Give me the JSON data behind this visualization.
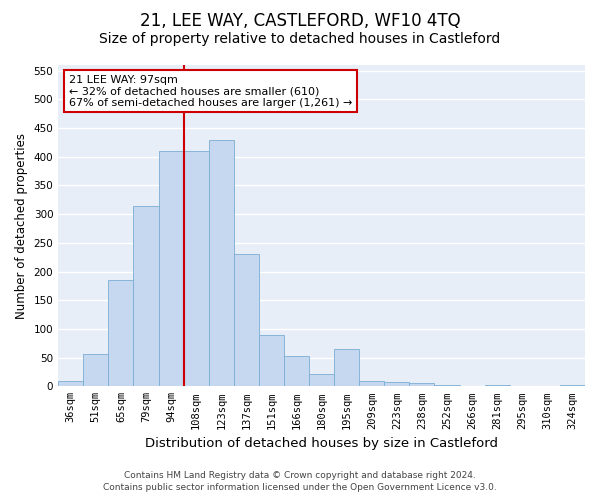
{
  "title": "21, LEE WAY, CASTLEFORD, WF10 4TQ",
  "subtitle": "Size of property relative to detached houses in Castleford",
  "xlabel": "Distribution of detached houses by size in Castleford",
  "ylabel": "Number of detached properties",
  "categories": [
    "36sqm",
    "51sqm",
    "65sqm",
    "79sqm",
    "94sqm",
    "108sqm",
    "123sqm",
    "137sqm",
    "151sqm",
    "166sqm",
    "180sqm",
    "195sqm",
    "209sqm",
    "223sqm",
    "238sqm",
    "252sqm",
    "266sqm",
    "281sqm",
    "295sqm",
    "310sqm",
    "324sqm"
  ],
  "values": [
    10,
    57,
    185,
    315,
    410,
    410,
    430,
    230,
    90,
    52,
    22,
    65,
    10,
    8,
    5,
    3,
    1,
    2,
    1,
    1,
    3
  ],
  "bar_color": "#c5d8f0",
  "bar_edge_color": "#7aadd4",
  "vline_color": "#cc0000",
  "vline_x_index": 4.5,
  "ylim": [
    0,
    560
  ],
  "yticks": [
    0,
    50,
    100,
    150,
    200,
    250,
    300,
    350,
    400,
    450,
    500,
    550
  ],
  "annotation_line1": "21 LEE WAY: 97sqm",
  "annotation_line2": "← 32% of detached houses are smaller (610)",
  "annotation_line3": "67% of semi-detached houses are larger (1,261) →",
  "annotation_box_facecolor": "#ffffff",
  "annotation_box_edgecolor": "#cc0000",
  "footer_line1": "Contains HM Land Registry data © Crown copyright and database right 2024.",
  "footer_line2": "Contains public sector information licensed under the Open Government Licence v3.0.",
  "fig_facecolor": "#ffffff",
  "ax_facecolor": "#e8eef8",
  "grid_color": "#ffffff",
  "title_fontsize": 12,
  "subtitle_fontsize": 10,
  "tick_fontsize": 7.5,
  "ylabel_fontsize": 8.5,
  "xlabel_fontsize": 9.5,
  "annotation_fontsize": 8,
  "footer_fontsize": 6.5
}
